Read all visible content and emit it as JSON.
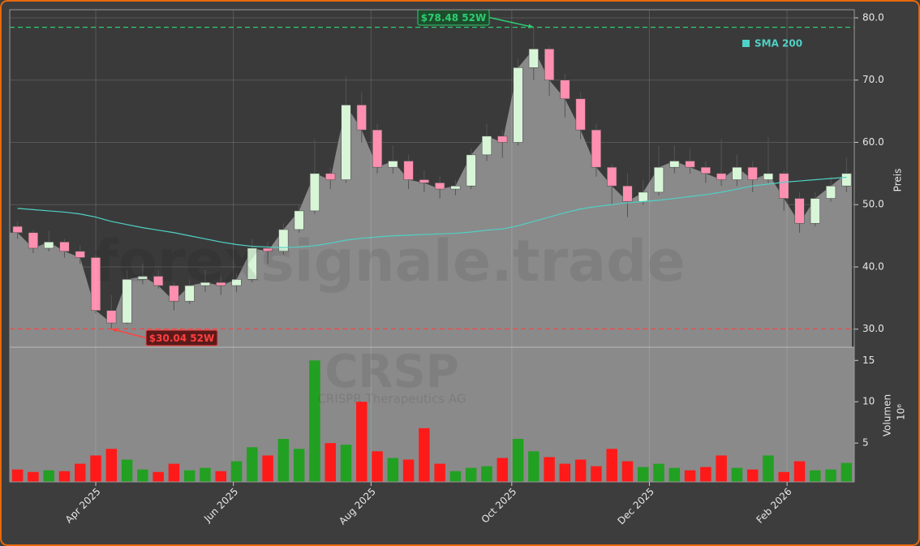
{
  "chart_data": [
    {
      "type": "candlestick",
      "watermark": "forexsignale.trade",
      "symbol": "CRSP",
      "company": "CRISPR Therapeutics AG",
      "y_axis_label": "Preis",
      "categories": [
        null,
        null,
        null,
        null,
        null,
        null,
        null,
        null,
        null,
        null,
        null,
        null,
        null,
        null,
        null,
        null,
        null,
        null,
        null,
        null,
        null,
        null,
        null,
        null,
        null,
        null,
        null,
        null,
        null,
        null,
        null,
        null,
        null,
        null,
        null,
        null,
        null,
        null,
        null,
        null,
        null,
        null,
        null,
        null,
        null,
        null,
        null,
        null,
        null,
        null,
        null,
        null,
        null,
        null
      ],
      "open": [
        46.5,
        45.5,
        43,
        44,
        42.5,
        41.5,
        33,
        31,
        38,
        38.5,
        37,
        34.5,
        37,
        37.5,
        37,
        38,
        43,
        42.5,
        46,
        49,
        55,
        54,
        66,
        62,
        56,
        57,
        54,
        53.5,
        52.5,
        53,
        58,
        61,
        60,
        72,
        75,
        70,
        67,
        62,
        56,
        53,
        50.5,
        52,
        56,
        57,
        56,
        55,
        54,
        56,
        54,
        55,
        51,
        47,
        51,
        53
      ],
      "high": [
        47.2,
        46,
        45.8,
        44.5,
        43.5,
        42,
        35.5,
        39.5,
        40.5,
        39.5,
        37.5,
        38,
        39.5,
        38.5,
        39,
        44.5,
        44,
        47,
        50,
        60.5,
        56,
        70.5,
        68,
        63,
        59.5,
        58,
        55.5,
        54.5,
        54,
        59,
        63,
        62,
        73.5,
        78.48,
        75.5,
        71,
        68,
        63,
        56.5,
        55,
        54,
        59.5,
        59.5,
        59,
        57,
        60.5,
        58,
        57,
        60.8,
        55.5,
        52,
        52,
        54.5,
        57.5
      ],
      "low": [
        44.5,
        42.2,
        42.5,
        41.5,
        40.5,
        32.5,
        30.04,
        30.8,
        37.2,
        36.5,
        33,
        34,
        36,
        35.5,
        36,
        37.5,
        40.5,
        42,
        45.5,
        48.5,
        52.5,
        53.5,
        60,
        55,
        55,
        52.5,
        52,
        51,
        51.5,
        52.5,
        57,
        57.5,
        59.5,
        70,
        67.5,
        64,
        60.5,
        54.5,
        50,
        48,
        50,
        51.5,
        55,
        55,
        53.5,
        53,
        53,
        52,
        53.5,
        49,
        45.5,
        46.5,
        50.5,
        52
      ],
      "close": [
        45.5,
        43,
        44,
        42.5,
        41.5,
        33,
        31,
        38,
        38.5,
        37,
        34.5,
        37,
        37.5,
        37,
        38,
        43,
        42.5,
        46,
        49,
        55,
        54,
        66,
        62,
        56,
        57,
        54,
        53.5,
        52.5,
        53,
        58,
        61,
        60,
        72,
        75,
        70,
        67,
        62,
        56,
        53,
        50.5,
        52,
        56,
        57,
        56,
        55,
        54,
        56,
        54,
        55,
        51,
        47,
        51,
        53,
        55
      ],
      "up_color": "#d8f5d8",
      "down_color": "#ff8fb0",
      "area_color": "#8a8a8a",
      "series": [
        {
          "name": "SMA 200",
          "color": "#4fd1c5",
          "values": [
            49.4,
            49.2,
            49,
            48.8,
            48.5,
            48,
            47.3,
            46.8,
            46.3,
            45.9,
            45.5,
            45,
            44.5,
            44,
            43.6,
            43.3,
            43.2,
            43.1,
            43.2,
            43.4,
            43.8,
            44.3,
            44.6,
            44.8,
            45,
            45.1,
            45.2,
            45.3,
            45.4,
            45.6,
            45.9,
            46.1,
            46.6,
            47.3,
            48,
            48.7,
            49.3,
            49.7,
            50,
            50.3,
            50.5,
            50.7,
            51,
            51.3,
            51.6,
            52,
            52.5,
            53,
            53.3,
            53.6,
            53.8,
            54,
            54.2,
            54.4
          ]
        }
      ],
      "annotations": [
        {
          "text": "$78.48 52W",
          "value": 78.48,
          "color": "#2ecc71"
        },
        {
          "text": "$30.04 52W",
          "value": 30.04,
          "color": "#ff4040"
        }
      ],
      "ylim": [
        27.1,
        81.3
      ],
      "yticks": [
        {
          "value": 30,
          "label": "30.0"
        },
        {
          "value": 40,
          "label": "40.0"
        },
        {
          "value": 50,
          "label": "50.0"
        },
        {
          "value": 60,
          "label": "60.0"
        },
        {
          "value": 70,
          "label": "70.0"
        },
        {
          "value": 80,
          "label": "80.0"
        }
      ],
      "grid": true,
      "legend": "upper right"
    },
    {
      "type": "bar",
      "y_axis_label": "Volumen",
      "scale_label": "10⁶",
      "categories": [
        null,
        null,
        null,
        null,
        null,
        null,
        null,
        null,
        null,
        null,
        null,
        null,
        null,
        null,
        null,
        null,
        null,
        null,
        null,
        null,
        null,
        null,
        null,
        null,
        null,
        null,
        null,
        null,
        null,
        null,
        null,
        null,
        null,
        null,
        null,
        null,
        null,
        null,
        null,
        null,
        null,
        null,
        null,
        null,
        null,
        null,
        null,
        null,
        null,
        null,
        null,
        null,
        null,
        null
      ],
      "values": [
        1.8,
        1.5,
        1.7,
        1.6,
        2.5,
        3.5,
        4.3,
        3,
        1.8,
        1.5,
        2.5,
        1.7,
        2,
        1.6,
        2.8,
        4.5,
        3.5,
        5.5,
        4.3,
        15,
        5,
        4.8,
        10,
        4,
        3.2,
        3,
        6.8,
        2.5,
        1.6,
        2,
        2.2,
        3.2,
        5.5,
        4,
        3.3,
        2.5,
        3,
        2.2,
        4.3,
        2.8,
        2.1,
        2.5,
        2,
        1.7,
        2.1,
        3.5,
        2,
        1.8,
        3.5,
        1.5,
        2.8,
        1.7,
        1.8,
        2.6
      ],
      "up_color": "#22a022",
      "down_color": "#ff1a1a",
      "ylim": [
        0.3,
        16.6
      ],
      "yticks": [
        5,
        10,
        15
      ],
      "xticks": [
        {
          "value": 5,
          "label": "Apr 2025"
        },
        {
          "value": 13.8,
          "label": "Jun 2025"
        },
        {
          "value": 22.6,
          "label": "Aug 2025"
        },
        {
          "value": 31.6,
          "label": "Oct 2025"
        },
        {
          "value": 40.4,
          "label": "Dec 2025"
        },
        {
          "value": 49.2,
          "label": "Feb 2026"
        }
      ]
    }
  ]
}
